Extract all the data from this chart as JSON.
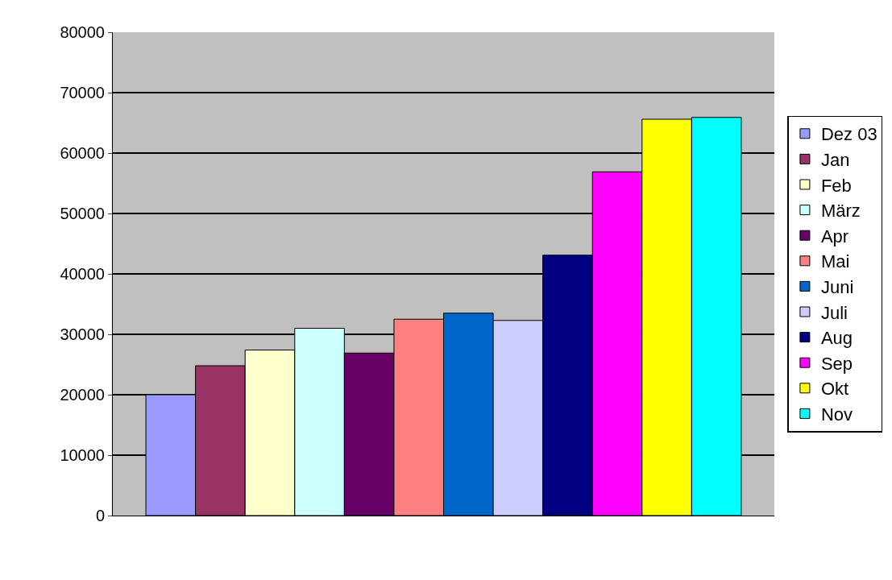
{
  "chart_data": {
    "type": "bar",
    "categories": [
      null
    ],
    "series": [
      {
        "name": "Dez 03",
        "color": "#9999ff",
        "values": [
          20000
        ]
      },
      {
        "name": "Jan",
        "color": "#993366",
        "values": [
          24800
        ]
      },
      {
        "name": "Feb",
        "color": "#ffffcc",
        "values": [
          27400
        ]
      },
      {
        "name": "März",
        "color": "#ccffff",
        "values": [
          31000
        ]
      },
      {
        "name": "Apr",
        "color": "#660066",
        "values": [
          26900
        ]
      },
      {
        "name": "Mai",
        "color": "#ff8080",
        "values": [
          32500
        ]
      },
      {
        "name": "Juni",
        "color": "#0066cc",
        "values": [
          33500
        ]
      },
      {
        "name": "Juli",
        "color": "#ccccff",
        "values": [
          32300
        ]
      },
      {
        "name": "Aug",
        "color": "#000080",
        "values": [
          43100
        ]
      },
      {
        "name": "Sep",
        "color": "#ff00ff",
        "values": [
          56900
        ]
      },
      {
        "name": "Okt",
        "color": "#ffff00",
        "values": [
          65600
        ]
      },
      {
        "name": "Nov",
        "color": "#00ffff",
        "values": [
          65900
        ]
      }
    ],
    "ylim": [
      0,
      80000
    ],
    "yticks": [
      0,
      10000,
      20000,
      30000,
      40000,
      50000,
      60000,
      70000,
      80000
    ],
    "grid": "y",
    "legend": "right",
    "tick_labels": "y"
  }
}
